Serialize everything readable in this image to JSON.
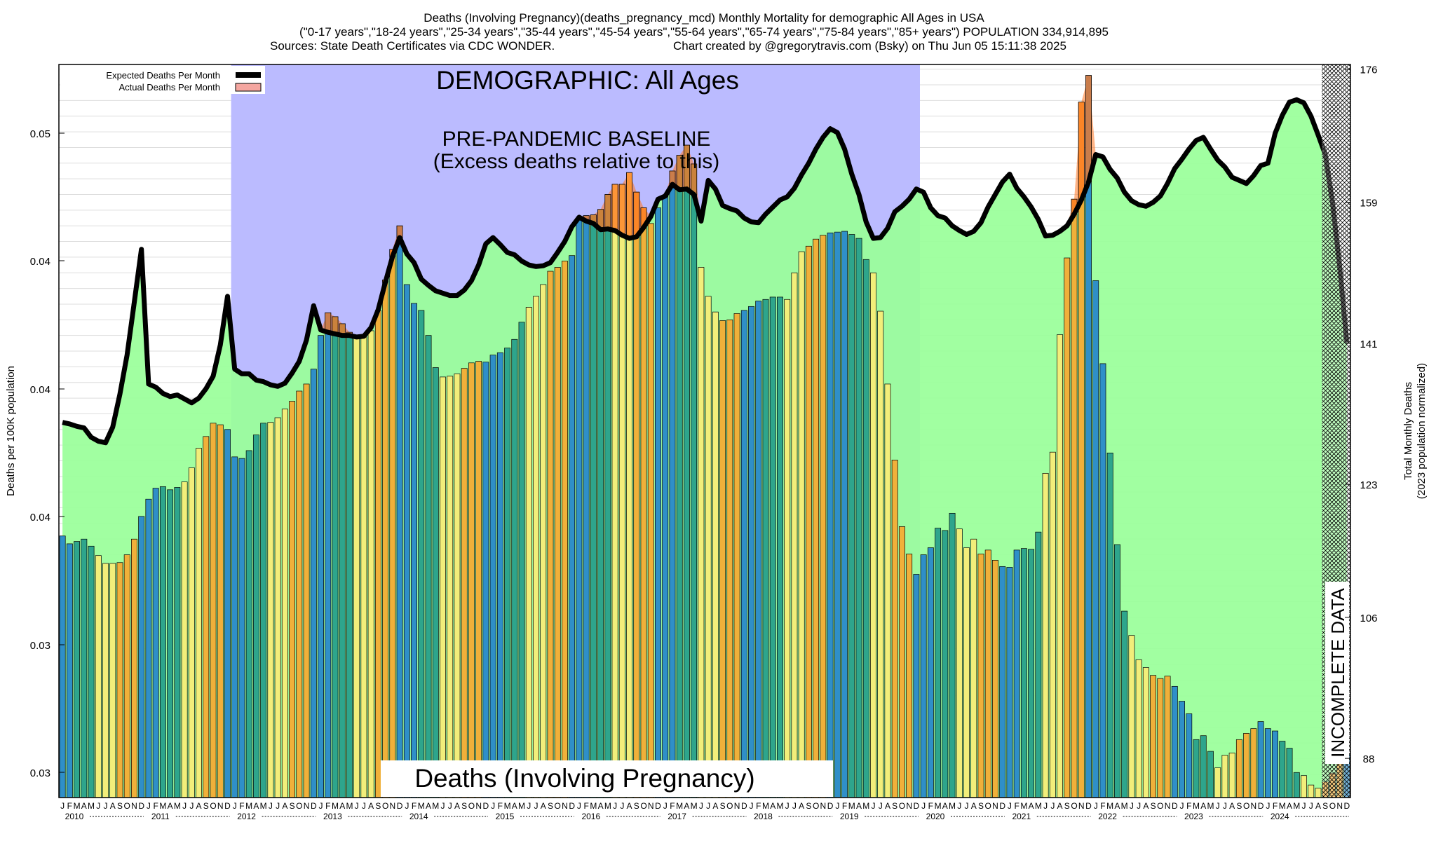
{
  "header": {
    "line1": "Deaths (Involving Pregnancy)(deaths_pregnancy_mcd) Monthly Mortality for demographic All Ages in USA",
    "line2": "(\"0-17 years\",\"18-24 years\",\"25-34 years\",\"35-44 years\",\"45-54 years\",\"55-64 years\",\"65-74 years\",\"75-84 years\",\"85+ years\") POPULATION 334,914,895",
    "sources": "Sources: State Death Certificates via CDC WONDER.",
    "credit": "Chart created by @gregorytravis.com (Bsky) on Thu Jun 05 15:11:38 2025"
  },
  "legend": {
    "expected": "Expected Deaths Per Month",
    "actual": "Actual Deaths Per Month"
  },
  "annotations": {
    "demographic": "DEMOGRAPHIC: All Ages",
    "baseline_1": "PRE-PANDEMIC BASELINE",
    "baseline_2": "(Excess deaths relative to this)",
    "cause_box": "Deaths (Involving Pregnancy)",
    "incomplete": "INCOMPLETE DATA"
  },
  "colors": {
    "baseline_shade": "#bbbbff",
    "expected_fill": "#99ff99",
    "excess": "#ff7722",
    "expected_line": "#000000",
    "winter": "#2f8fc8",
    "spring": "#2ea58c",
    "summer": "#f2ee7a",
    "autumn": "#f0b03a"
  },
  "chart_data": {
    "type": "bar",
    "ylabel_left": "Deaths per 100K population",
    "ylabel_right_1": "Total Monthly Deaths",
    "ylabel_right_2": "(2023 population normalized)",
    "left_ticks": [
      "0.03",
      "0.03",
      "0.04",
      "0.04",
      "0.04",
      "0.05"
    ],
    "right_ticks": [
      "88",
      "106",
      "123",
      "141",
      "159",
      "176"
    ],
    "right_tick_values": [
      88,
      106,
      123,
      141,
      159,
      176
    ],
    "ylim_right": [
      83,
      176.6
    ],
    "month_letters": [
      "J",
      "F",
      "M",
      "A",
      "M",
      "J",
      "J",
      "A",
      "S",
      "O",
      "N",
      "D"
    ],
    "years": [
      "2010",
      "2011",
      "2012",
      "2013",
      "2014",
      "2015",
      "2016",
      "2017",
      "2018",
      "2019",
      "2020",
      "2021",
      "2022",
      "2023",
      "2024"
    ],
    "baseline_shade_months": [
      24,
      119
    ],
    "incomplete_from_month": 176,
    "actual_deaths": [
      116.4,
      115.4,
      115.7,
      116.0,
      115.1,
      113.9,
      112.9,
      112.9,
      113.0,
      114.0,
      116.0,
      118.9,
      121.1,
      122.5,
      122.7,
      122.3,
      122.6,
      123.3,
      125.1,
      127.6,
      129.1,
      130.8,
      130.6,
      130.0,
      126.5,
      126.3,
      127.3,
      129.3,
      130.8,
      130.9,
      131.5,
      132.6,
      133.6,
      134.9,
      135.8,
      137.7,
      142.0,
      144.9,
      144.4,
      143.5,
      142.4,
      141.9,
      141.8,
      142.6,
      145.2,
      149.1,
      153.0,
      156.0,
      148.5,
      146.1,
      145.2,
      142.0,
      137.9,
      136.7,
      136.8,
      137.1,
      137.8,
      138.5,
      138.7,
      138.6,
      139.5,
      139.8,
      140.4,
      141.5,
      143.7,
      145.6,
      147.0,
      148.5,
      150.2,
      150.7,
      151.5,
      152.2,
      157.1,
      157.3,
      157.4,
      158.1,
      160.0,
      161.3,
      161.3,
      162.8,
      160.3,
      158.3,
      156.3,
      158.3,
      159.9,
      163.0,
      165.0,
      166.3,
      163.9,
      150.7,
      147.0,
      145.0,
      143.9,
      144.0,
      144.8,
      145.2,
      145.7,
      146.4,
      146.6,
      146.9,
      146.9,
      146.6,
      150.0,
      152.7,
      153.4,
      154.3,
      154.8,
      155.1,
      155.2,
      155.3,
      154.9,
      154.4,
      151.7,
      150.0,
      145.1,
      135.8,
      126.1,
      117.6,
      114.1,
      111.5,
      114.0,
      114.9,
      117.4,
      117.1,
      119.3,
      117.3,
      114.9,
      116.0,
      114.1,
      114.6,
      113.3,
      112.5,
      112.4,
      114.6,
      114.8,
      114.7,
      116.9,
      124.4,
      127.1,
      142.1,
      151.9,
      159.4,
      171.8,
      175.2,
      149.0,
      138.4,
      127.0,
      115.3,
      106.8,
      103.7,
      100.6,
      99.6,
      98.6,
      98.2,
      98.5,
      97.2,
      95.3,
      93.7,
      90.4,
      90.9,
      88.9,
      86.8,
      88.4,
      88.7,
      90.4,
      91.2,
      91.8,
      92.7,
      91.8,
      91.5,
      90.2,
      89.3,
      86.2,
      85.8,
      84.6,
      84.2,
      85.0,
      86.1,
      87.7,
      88.6
    ],
    "expected_deaths": [
      130.9,
      130.7,
      130.4,
      130.2,
      129.0,
      128.5,
      128.3,
      130.3,
      134.5,
      139.5,
      146.2,
      153.0,
      135.8,
      135.4,
      134.6,
      134.2,
      134.4,
      133.9,
      133.4,
      134.0,
      135.2,
      136.8,
      140.8,
      147.0,
      137.7,
      137.1,
      137.1,
      136.3,
      136.1,
      135.7,
      135.5,
      135.9,
      137.2,
      138.7,
      141.4,
      145.8,
      142.7,
      142.4,
      142.2,
      142.0,
      142.0,
      141.8,
      141.9,
      143.0,
      145.3,
      148.8,
      152.1,
      154.5,
      152.4,
      151.3,
      149.2,
      148.4,
      147.7,
      147.4,
      147.1,
      147.1,
      147.8,
      149.0,
      151.0,
      153.7,
      154.5,
      153.6,
      152.6,
      152.3,
      151.5,
      151.0,
      150.8,
      150.9,
      151.3,
      152.6,
      154.0,
      155.9,
      157.1,
      156.6,
      156.3,
      155.5,
      155.6,
      155.4,
      154.8,
      154.4,
      154.6,
      155.8,
      157.2,
      159.4,
      159.8,
      161.3,
      160.6,
      160.7,
      160.0,
      156.6,
      161.8,
      160.7,
      158.6,
      158.2,
      157.9,
      157.0,
      156.5,
      156.4,
      157.5,
      158.4,
      159.3,
      159.7,
      160.8,
      162.5,
      164.0,
      165.8,
      167.3,
      168.4,
      167.9,
      165.8,
      162.6,
      160.0,
      156.5,
      154.4,
      154.5,
      155.7,
      157.8,
      158.5,
      159.4,
      160.7,
      160.3,
      158.3,
      157.3,
      157.0,
      156.0,
      155.4,
      154.9,
      155.3,
      156.4,
      158.4,
      160.0,
      161.6,
      162.6,
      160.8,
      159.7,
      158.4,
      156.8,
      154.7,
      154.8,
      155.3,
      156.0,
      157.5,
      159.3,
      161.6,
      165.1,
      164.8,
      163.2,
      162.1,
      160.3,
      159.2,
      158.7,
      158.5,
      159.0,
      159.8,
      161.4,
      163.3,
      164.5,
      165.8,
      166.9,
      167.3,
      165.8,
      164.4,
      163.5,
      162.2,
      161.8,
      161.4,
      162.4,
      163.7,
      164.0,
      167.8,
      170.1,
      171.8,
      172.1,
      171.7,
      170.0,
      167.6,
      165.1,
      159.0,
      150.8,
      141.1
    ]
  }
}
